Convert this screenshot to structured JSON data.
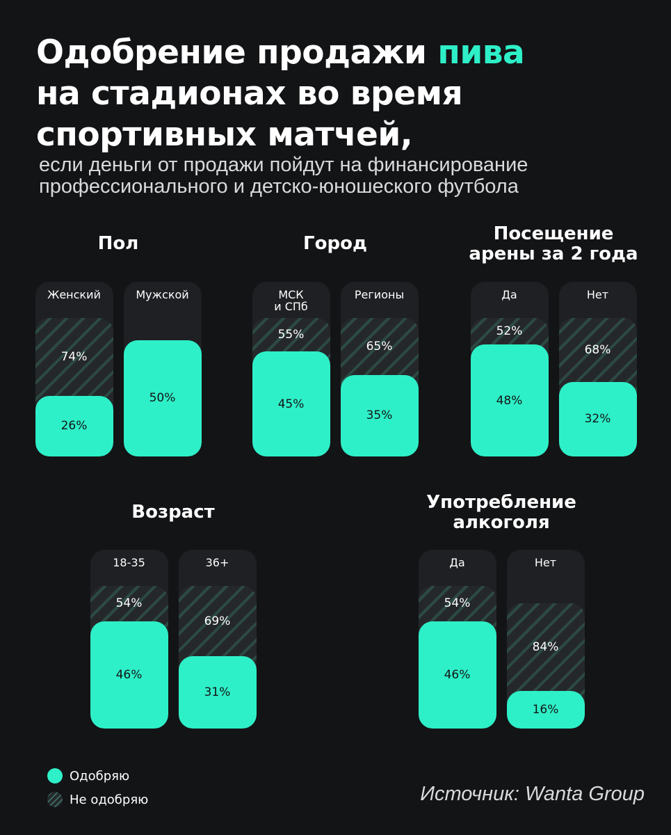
{
  "title": {
    "line1_before": "Одобрение продажи ",
    "line1_accent": "пива",
    "line2": "на стадионах во время",
    "line3": "спортивных матчей,"
  },
  "subtitle": {
    "line1": "если деньги от продажи пойдут на финансирование",
    "line2": "профессионального и детско-юношеского футбола"
  },
  "colors": {
    "approve": "#2ef0c8",
    "disapprove": "#25282b",
    "background": "#131416"
  },
  "legend": {
    "approve": "Одобряю",
    "disapprove": "Не одобряю"
  },
  "source": "Источник: Wanta Group",
  "chart_data": [
    {
      "type": "bar",
      "title": "Пол",
      "categories": [
        "Женский",
        "Мужской"
      ],
      "series": [
        {
          "name": "Одобряю",
          "values": [
            26,
            50
          ]
        },
        {
          "name": "Не одобряю",
          "values": [
            74,
            null
          ]
        }
      ],
      "ylim": [
        0,
        100
      ]
    },
    {
      "type": "bar",
      "title": "Город",
      "categories": [
        "МСК и СПб",
        "Регионы"
      ],
      "series": [
        {
          "name": "Одобряю",
          "values": [
            45,
            35
          ]
        },
        {
          "name": "Не одобряю",
          "values": [
            55,
            65
          ]
        }
      ],
      "ylim": [
        0,
        100
      ]
    },
    {
      "type": "bar",
      "title": "Посещение арены за 2 года",
      "categories": [
        "Да",
        "Нет"
      ],
      "series": [
        {
          "name": "Одобряю",
          "values": [
            48,
            32
          ]
        },
        {
          "name": "Не одобряю",
          "values": [
            52,
            68
          ]
        }
      ],
      "ylim": [
        0,
        100
      ]
    },
    {
      "type": "bar",
      "title": "Возраст",
      "categories": [
        "18-35",
        "36+"
      ],
      "series": [
        {
          "name": "Одобряю",
          "values": [
            46,
            31
          ]
        },
        {
          "name": "Не одобряю",
          "values": [
            54,
            69
          ]
        }
      ],
      "ylim": [
        0,
        100
      ]
    },
    {
      "type": "bar",
      "title": "Употребление алкоголя",
      "categories": [
        "Да",
        "Нет"
      ],
      "series": [
        {
          "name": "Одобряю",
          "values": [
            46,
            16
          ]
        },
        {
          "name": "Не одобряю",
          "values": [
            54,
            84
          ]
        }
      ],
      "ylim": [
        0,
        100
      ]
    }
  ]
}
